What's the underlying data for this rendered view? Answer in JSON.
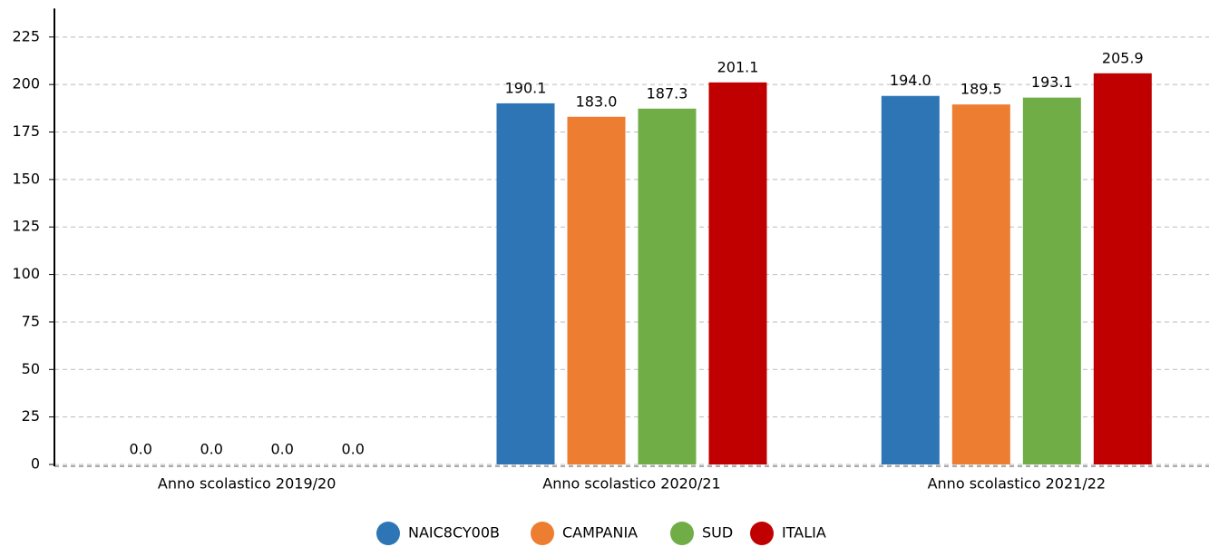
{
  "chart_data": {
    "type": "bar",
    "categories": [
      "Anno scolastico 2019/20",
      "Anno scolastico 2020/21",
      "Anno scolastico 2021/22"
    ],
    "series": [
      {
        "name": "NAIC8CY00B",
        "color": "#2e75b6",
        "values": [
          0,
          190.1,
          194
        ],
        "value_labels": [
          "0.0",
          "190.1",
          "194.0"
        ]
      },
      {
        "name": "CAMPANIA",
        "color": "#ed7d31",
        "values": [
          0,
          183,
          189.5
        ],
        "value_labels": [
          "0.0",
          "183.0",
          "189.5"
        ]
      },
      {
        "name": "SUD",
        "color": "#70ad47",
        "values": [
          0,
          187.3,
          193.1
        ],
        "value_labels": [
          "0.0",
          "187.3",
          "193.1"
        ]
      },
      {
        "name": "ITALIA",
        "color": "#c00000",
        "values": [
          0,
          201.1,
          205.9
        ],
        "value_labels": [
          "0.0",
          "201.1",
          "205.9"
        ]
      }
    ],
    "ylim": [
      0,
      240
    ],
    "yticks": [
      0,
      25,
      50,
      75,
      100,
      125,
      150,
      175,
      200,
      225
    ],
    "grid": true,
    "legend": "bottom"
  }
}
